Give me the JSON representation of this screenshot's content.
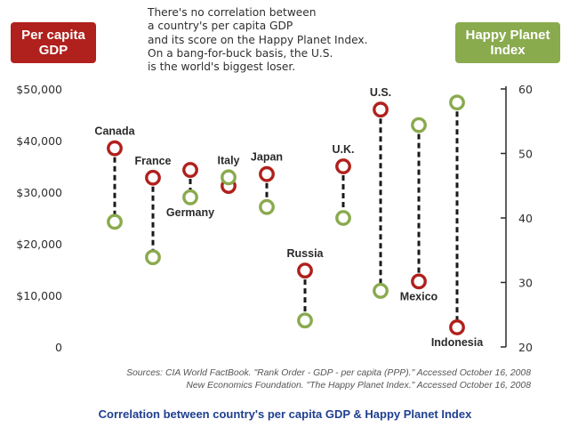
{
  "badges": {
    "left_line1": "Per capita",
    "left_line2": "GDP",
    "right_line1": "Happy Planet",
    "right_line2": "Index"
  },
  "headline": [
    "There's no correlation between",
    "a country's per capita GDP",
    "and its score on the Happy Planet Index.",
    "On a bang-for-buck basis, the U.S.",
    "is the world's biggest loser."
  ],
  "sources": [
    "Sources: CIA World FactBook. \"Rank Order - GDP - per capita (PPP).\" Accessed October 16, 2008",
    "New Economics Foundation. \"The Happy Planet Index.\" Accessed October 16, 2008"
  ],
  "caption": "Correlation between country's per capita GDP & Happy Planet Index",
  "chart_data": {
    "type": "scatter",
    "title": "",
    "left_axis": {
      "label": "Per capita GDP",
      "range": [
        0,
        50000
      ],
      "ticks": [
        0,
        10000,
        20000,
        30000,
        40000,
        50000
      ],
      "tick_labels": [
        "0",
        "$10,000",
        "$20,000",
        "$30,000",
        "$40,000",
        "$50,000"
      ]
    },
    "right_axis": {
      "label": "Happy Planet Index",
      "range": [
        20,
        60
      ],
      "ticks": [
        20,
        30,
        40,
        50,
        60
      ],
      "tick_labels": [
        "20",
        "30",
        "40",
        "50",
        "60"
      ]
    },
    "categories": [
      "Canada",
      "France",
      "Germany",
      "Italy",
      "Japan",
      "Russia",
      "U.K.",
      "U.S.",
      "Mexico",
      "Indonesia"
    ],
    "series": [
      {
        "name": "Per capita GDP",
        "color": "#b0201c",
        "axis": "left",
        "values": [
          38500,
          32800,
          34300,
          31200,
          33500,
          14800,
          35000,
          46000,
          12700,
          3800
        ]
      },
      {
        "name": "Happy Planet Index",
        "color": "#8aaa4e",
        "axis": "right",
        "values": [
          39.4,
          33.9,
          43.2,
          46.3,
          41.7,
          24.1,
          40.0,
          28.7,
          54.4,
          57.9
        ]
      }
    ],
    "label_side": [
      "above",
      "above",
      "below",
      "above",
      "above",
      "above",
      "above",
      "above",
      "below",
      "below"
    ],
    "grid": false,
    "legend": "none"
  }
}
